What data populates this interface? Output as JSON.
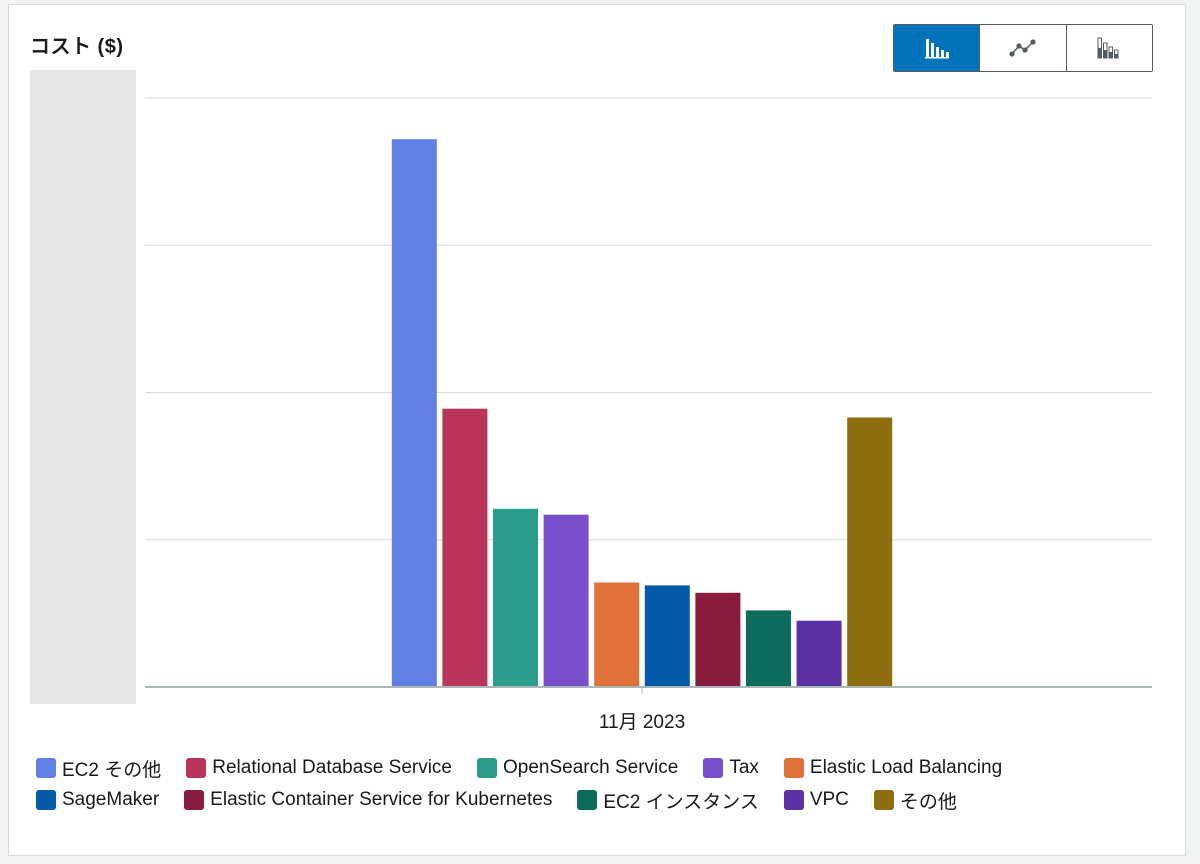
{
  "header": {
    "title": "コスト ($)"
  },
  "chart_type_toggle": {
    "options": [
      {
        "icon": "bar-chart-icon",
        "selected": true
      },
      {
        "icon": "line-chart-icon",
        "selected": false
      },
      {
        "icon": "stacked-bar-chart-icon",
        "selected": false
      }
    ]
  },
  "chart_data": {
    "type": "bar",
    "x_label": "11月 2023",
    "y_tick_labels_visible": false,
    "ylim": [
      0,
      4
    ],
    "gridlines": [
      0,
      1,
      2,
      3,
      4
    ],
    "series": [
      {
        "name": "EC2 その他",
        "value": 3.72,
        "color": "#5f7fe5"
      },
      {
        "name": "Relational Database Service",
        "value": 1.89,
        "color": "#bb355b"
      },
      {
        "name": "OpenSearch Service",
        "value": 1.21,
        "color": "#2a9d8b"
      },
      {
        "name": "Tax",
        "value": 1.17,
        "color": "#7a4fcc"
      },
      {
        "name": "Elastic Load Balancing",
        "value": 0.71,
        "color": "#e0713a"
      },
      {
        "name": "SageMaker",
        "value": 0.69,
        "color": "#045aa8"
      },
      {
        "name": "Elastic Container Service for Kubernetes",
        "value": 0.64,
        "color": "#891c3c"
      },
      {
        "name": "EC2 インスタンス",
        "value": 0.52,
        "color": "#0d6c5c"
      },
      {
        "name": "VPC",
        "value": 0.45,
        "color": "#5b31a5"
      },
      {
        "name": "その他",
        "value": 1.83,
        "color": "#8f6e10"
      }
    ]
  }
}
